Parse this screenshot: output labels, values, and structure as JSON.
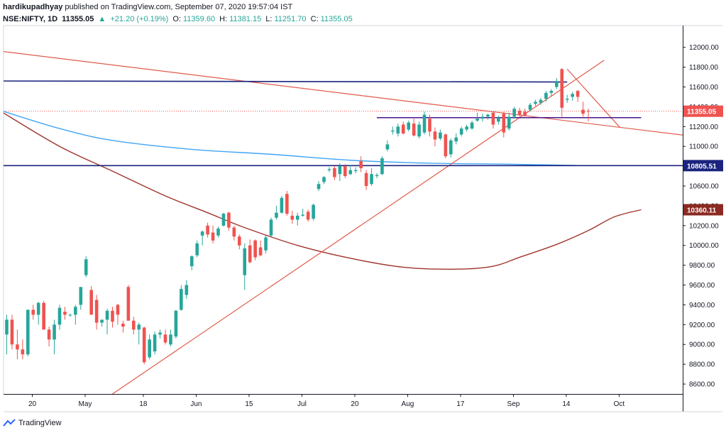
{
  "header": {
    "author": "hardikupadhyay",
    "published": "published on TradingView.com, September 07, 2020 19:57:04 IST",
    "symbol": "NSE:NIFTY, 1D",
    "price": "11355.05",
    "change": "+21.20 (+0.19%)",
    "open_label": "O:",
    "open_val": "11359.60",
    "high_label": "H:",
    "high_val": "11381.15",
    "low_label": "L:",
    "low_val": "11251.70",
    "close_label": "C:",
    "close_val": "11355.05"
  },
  "footer": {
    "brand": "TradingView"
  },
  "colors": {
    "up": "#26a69a",
    "down": "#ef5350",
    "trend_red": "#e05a4a",
    "ma_blue": "#42a5f5",
    "ma_brown": "#a0342c",
    "horiz_navy": "#1a237e",
    "purple": "#4a148c"
  },
  "chart_data": {
    "type": "candlestick",
    "y_axis": {
      "ticks": [
        "12000.00",
        "11800.00",
        "11600.00",
        "11400.00",
        "11200.00",
        "11000.00",
        "10800.00",
        "10600.00",
        "10400.00",
        "10200.00",
        "10000.00",
        "9800.00",
        "9600.00",
        "9400.00",
        "9200.00",
        "9000.00",
        "8800.00",
        "8600.00"
      ],
      "tick_values": [
        12000,
        11800,
        11600,
        11400,
        11200,
        11000,
        10800,
        10600,
        10400,
        10200,
        10000,
        9800,
        9600,
        9400,
        9200,
        9000,
        8800,
        8600
      ],
      "range": [
        8500,
        12220
      ]
    },
    "x_axis": {
      "labels": [
        "20",
        "May",
        "18",
        "Jun",
        "15",
        "Jul",
        "20",
        "Aug",
        "17",
        "Sep",
        "14",
        "Oct"
      ],
      "label_index": [
        0,
        10,
        21,
        31,
        41,
        51,
        61,
        71,
        81,
        91,
        101,
        111
      ]
    },
    "price_labels": [
      {
        "text": "11355.05",
        "value": 11355.05,
        "color": "#ef5350"
      },
      {
        "text": "10805.51",
        "value": 10805.51,
        "color": "#1a237e"
      },
      {
        "text": "10360.11",
        "value": 10360.11,
        "color": "#8b2a22"
      }
    ],
    "candles": [
      {
        "o": 9100,
        "h": 9300,
        "l": 8900,
        "c": 9250
      },
      {
        "o": 9250,
        "h": 9300,
        "l": 8950,
        "c": 9000
      },
      {
        "o": 9000,
        "h": 9150,
        "l": 8850,
        "c": 8950
      },
      {
        "o": 8950,
        "h": 9050,
        "l": 8850,
        "c": 8900
      },
      {
        "o": 8900,
        "h": 9350,
        "l": 8880,
        "c": 9350
      },
      {
        "o": 9350,
        "h": 9400,
        "l": 9250,
        "c": 9300
      },
      {
        "o": 9300,
        "h": 9430,
        "l": 9200,
        "c": 9420
      },
      {
        "o": 9420,
        "h": 9440,
        "l": 9150,
        "c": 9150
      },
      {
        "o": 9150,
        "h": 9180,
        "l": 8980,
        "c": 9050
      },
      {
        "o": 9050,
        "h": 9250,
        "l": 8900,
        "c": 9200
      },
      {
        "o": 9200,
        "h": 9400,
        "l": 9150,
        "c": 9370
      },
      {
        "o": 9330,
        "h": 9380,
        "l": 9250,
        "c": 9300
      },
      {
        "o": 9300,
        "h": 9310,
        "l": 9280,
        "c": 9300
      },
      {
        "o": 9300,
        "h": 9400,
        "l": 9200,
        "c": 9380
      },
      {
        "o": 9400,
        "h": 9580,
        "l": 9350,
        "c": 9580
      },
      {
        "o": 9700,
        "h": 9890,
        "l": 9680,
        "c": 9860
      },
      {
        "o": 9550,
        "h": 9590,
        "l": 9300,
        "c": 9300
      },
      {
        "o": 9450,
        "h": 9500,
        "l": 9150,
        "c": 9220
      },
      {
        "o": 9220,
        "h": 9250,
        "l": 9180,
        "c": 9250
      },
      {
        "o": 9250,
        "h": 9360,
        "l": 9100,
        "c": 9340
      },
      {
        "o": 9340,
        "h": 9380,
        "l": 9170,
        "c": 9230
      },
      {
        "o": 9400,
        "h": 9410,
        "l": 9200,
        "c": 9300
      },
      {
        "o": 9210,
        "h": 9240,
        "l": 9120,
        "c": 9180
      },
      {
        "o": 9580,
        "h": 9600,
        "l": 9240,
        "c": 9240
      },
      {
        "o": 9240,
        "h": 9280,
        "l": 9100,
        "c": 9150
      },
      {
        "o": 9150,
        "h": 9220,
        "l": 9000,
        "c": 9200
      },
      {
        "o": 9170,
        "h": 9180,
        "l": 8800,
        "c": 8820
      },
      {
        "o": 8870,
        "h": 9100,
        "l": 8850,
        "c": 9050
      },
      {
        "o": 8930,
        "h": 9130,
        "l": 8900,
        "c": 9100
      },
      {
        "o": 9100,
        "h": 9150,
        "l": 9060,
        "c": 9120
      },
      {
        "o": 9100,
        "h": 9150,
        "l": 9000,
        "c": 9020
      },
      {
        "o": 9000,
        "h": 9150,
        "l": 8980,
        "c": 9100
      },
      {
        "o": 9080,
        "h": 9350,
        "l": 9060,
        "c": 9340
      },
      {
        "o": 9350,
        "h": 9600,
        "l": 9340,
        "c": 9560
      },
      {
        "o": 9500,
        "h": 9650,
        "l": 9460,
        "c": 9600
      },
      {
        "o": 9790,
        "h": 9900,
        "l": 9750,
        "c": 9890
      },
      {
        "o": 9900,
        "h": 10050,
        "l": 9880,
        "c": 10020
      },
      {
        "o": 10100,
        "h": 10150,
        "l": 10000,
        "c": 10140
      },
      {
        "o": 10200,
        "h": 10230,
        "l": 10080,
        "c": 10110
      },
      {
        "o": 10130,
        "h": 10200,
        "l": 10020,
        "c": 10050
      },
      {
        "o": 10100,
        "h": 10190,
        "l": 10080,
        "c": 10170
      },
      {
        "o": 10200,
        "h": 10330,
        "l": 10190,
        "c": 10320
      },
      {
        "o": 10330,
        "h": 10340,
        "l": 10150,
        "c": 10180
      },
      {
        "o": 10180,
        "h": 10200,
        "l": 10050,
        "c": 10090
      },
      {
        "o": 10090,
        "h": 10110,
        "l": 9960,
        "c": 10000
      },
      {
        "o": 9700,
        "h": 10020,
        "l": 9550,
        "c": 9970
      },
      {
        "o": 10000,
        "h": 10060,
        "l": 9820,
        "c": 9830
      },
      {
        "o": 10050,
        "h": 10060,
        "l": 9850,
        "c": 9880
      },
      {
        "o": 9980,
        "h": 10050,
        "l": 9890,
        "c": 9900
      },
      {
        "o": 9950,
        "h": 10100,
        "l": 9920,
        "c": 10080
      },
      {
        "o": 10100,
        "h": 10280,
        "l": 10090,
        "c": 10260
      },
      {
        "o": 10280,
        "h": 10400,
        "l": 10260,
        "c": 10330
      },
      {
        "o": 10330,
        "h": 10500,
        "l": 10320,
        "c": 10480
      },
      {
        "o": 10520,
        "h": 10550,
        "l": 10300,
        "c": 10320
      },
      {
        "o": 10300,
        "h": 10350,
        "l": 10220,
        "c": 10260
      },
      {
        "o": 10260,
        "h": 10330,
        "l": 10200,
        "c": 10300
      },
      {
        "o": 10300,
        "h": 10370,
        "l": 10290,
        "c": 10310
      },
      {
        "o": 10340,
        "h": 10360,
        "l": 10240,
        "c": 10260
      },
      {
        "o": 10270,
        "h": 10420,
        "l": 10250,
        "c": 10410
      },
      {
        "o": 10570,
        "h": 10650,
        "l": 10550,
        "c": 10620
      },
      {
        "o": 10640,
        "h": 10700,
        "l": 10620,
        "c": 10690
      },
      {
        "o": 10760,
        "h": 10790,
        "l": 10740,
        "c": 10770
      },
      {
        "o": 10780,
        "h": 10800,
        "l": 10660,
        "c": 10690
      },
      {
        "o": 10720,
        "h": 10830,
        "l": 10650,
        "c": 10800
      },
      {
        "o": 10800,
        "h": 10820,
        "l": 10680,
        "c": 10700
      },
      {
        "o": 10720,
        "h": 10810,
        "l": 10710,
        "c": 10760
      },
      {
        "o": 10750,
        "h": 10790,
        "l": 10730,
        "c": 10760
      },
      {
        "o": 10850,
        "h": 10900,
        "l": 10740,
        "c": 10780
      },
      {
        "o": 10730,
        "h": 10760,
        "l": 10560,
        "c": 10600
      },
      {
        "o": 10620,
        "h": 10780,
        "l": 10600,
        "c": 10720
      },
      {
        "o": 10700,
        "h": 10730,
        "l": 10680,
        "c": 10710
      },
      {
        "o": 10720,
        "h": 10900,
        "l": 10710,
        "c": 10880
      },
      {
        "o": 10970,
        "h": 11060,
        "l": 10950,
        "c": 11020
      },
      {
        "o": 11150,
        "h": 11200,
        "l": 11120,
        "c": 11160
      },
      {
        "o": 11130,
        "h": 11230,
        "l": 11100,
        "c": 11200
      },
      {
        "o": 11220,
        "h": 11250,
        "l": 11120,
        "c": 11130
      },
      {
        "o": 11170,
        "h": 11260,
        "l": 11150,
        "c": 11240
      },
      {
        "o": 11230,
        "h": 11280,
        "l": 11100,
        "c": 11110
      },
      {
        "o": 11100,
        "h": 11250,
        "l": 11080,
        "c": 11220
      },
      {
        "o": 11140,
        "h": 11350,
        "l": 11120,
        "c": 11320
      },
      {
        "o": 11280,
        "h": 11320,
        "l": 11100,
        "c": 11150
      },
      {
        "o": 11150,
        "h": 11190,
        "l": 11000,
        "c": 11070
      },
      {
        "o": 11080,
        "h": 11170,
        "l": 11060,
        "c": 11140
      },
      {
        "o": 11120,
        "h": 11130,
        "l": 10880,
        "c": 10900
      },
      {
        "o": 10920,
        "h": 11080,
        "l": 10890,
        "c": 11060
      },
      {
        "o": 11050,
        "h": 11130,
        "l": 11020,
        "c": 11090
      },
      {
        "o": 11120,
        "h": 11200,
        "l": 11100,
        "c": 11180
      },
      {
        "o": 11170,
        "h": 11220,
        "l": 11150,
        "c": 11200
      },
      {
        "o": 11180,
        "h": 11260,
        "l": 11170,
        "c": 11240
      },
      {
        "o": 11260,
        "h": 11340,
        "l": 11250,
        "c": 11280
      },
      {
        "o": 11280,
        "h": 11330,
        "l": 11250,
        "c": 11300
      },
      {
        "o": 11300,
        "h": 11330,
        "l": 11270,
        "c": 11320
      },
      {
        "o": 11340,
        "h": 11350,
        "l": 11180,
        "c": 11220
      },
      {
        "o": 11250,
        "h": 11310,
        "l": 11220,
        "c": 11290
      },
      {
        "o": 11330,
        "h": 11350,
        "l": 11090,
        "c": 11140
      },
      {
        "o": 11180,
        "h": 11340,
        "l": 11160,
        "c": 11300
      },
      {
        "o": 11300,
        "h": 11400,
        "l": 11280,
        "c": 11380
      },
      {
        "o": 11360,
        "h": 11390,
        "l": 11300,
        "c": 11320
      },
      {
        "o": 11350,
        "h": 11380,
        "l": 11300,
        "c": 11310
      },
      {
        "o": 11370,
        "h": 11440,
        "l": 11350,
        "c": 11420
      },
      {
        "o": 11430,
        "h": 11470,
        "l": 11410,
        "c": 11450
      },
      {
        "o": 11440,
        "h": 11490,
        "l": 11420,
        "c": 11470
      },
      {
        "o": 11480,
        "h": 11560,
        "l": 11450,
        "c": 11540
      },
      {
        "o": 11540,
        "h": 11580,
        "l": 11500,
        "c": 11560
      },
      {
        "o": 11600,
        "h": 11690,
        "l": 11580,
        "c": 11660
      },
      {
        "o": 11780,
        "h": 11790,
        "l": 11300,
        "c": 11390
      },
      {
        "o": 11470,
        "h": 11520,
        "l": 11440,
        "c": 11480
      },
      {
        "o": 11500,
        "h": 11550,
        "l": 11460,
        "c": 11530
      },
      {
        "o": 11560,
        "h": 11570,
        "l": 11450,
        "c": 11500
      },
      {
        "o": 11370,
        "h": 11450,
        "l": 11300,
        "c": 11330
      },
      {
        "o": 11359.6,
        "h": 11381.15,
        "l": 11251.7,
        "c": 11355.05
      }
    ],
    "lines": [
      {
        "name": "trendline-upper-red",
        "points": [
          [
            -1,
            11960
          ],
          [
            130,
            11100
          ]
        ]
      },
      {
        "name": "trendline-rising-red",
        "points": [
          [
            20,
            8500
          ],
          [
            113,
            11870
          ]
        ]
      },
      {
        "name": "trendline-falling-red",
        "points": [
          [
            106,
            11780
          ],
          [
            116,
            11190
          ]
        ]
      },
      {
        "name": "horizontal-navy-top",
        "points": [
          [
            -1,
            11660
          ],
          [
            106,
            11650
          ]
        ]
      },
      {
        "name": "horizontal-navy-bottom",
        "points": [
          [
            -1,
            10805.51
          ],
          [
            145,
            10805.51
          ]
        ]
      },
      {
        "name": "horizontal-purple",
        "points": [
          [
            70,
            11290
          ],
          [
            120,
            11290
          ]
        ]
      }
    ],
    "moving_averages": [
      {
        "name": "ma-blue",
        "points": [
          [
            -1,
            11360
          ],
          [
            10,
            11180
          ],
          [
            20,
            11060
          ],
          [
            35,
            10970
          ],
          [
            50,
            10920
          ],
          [
            65,
            10860
          ],
          [
            80,
            10830
          ],
          [
            95,
            10820
          ],
          [
            110,
            10805
          ]
        ]
      },
      {
        "name": "ma-brown",
        "points": [
          [
            -1,
            11350
          ],
          [
            10,
            11000
          ],
          [
            20,
            10750
          ],
          [
            30,
            10500
          ],
          [
            38,
            10330
          ],
          [
            45,
            10180
          ],
          [
            55,
            10000
          ],
          [
            65,
            9870
          ],
          [
            75,
            9780
          ],
          [
            85,
            9760
          ],
          [
            92,
            9790
          ],
          [
            97,
            9880
          ],
          [
            104,
            10010
          ],
          [
            110,
            10150
          ],
          [
            115,
            10290
          ],
          [
            120,
            10360
          ]
        ]
      }
    ]
  }
}
